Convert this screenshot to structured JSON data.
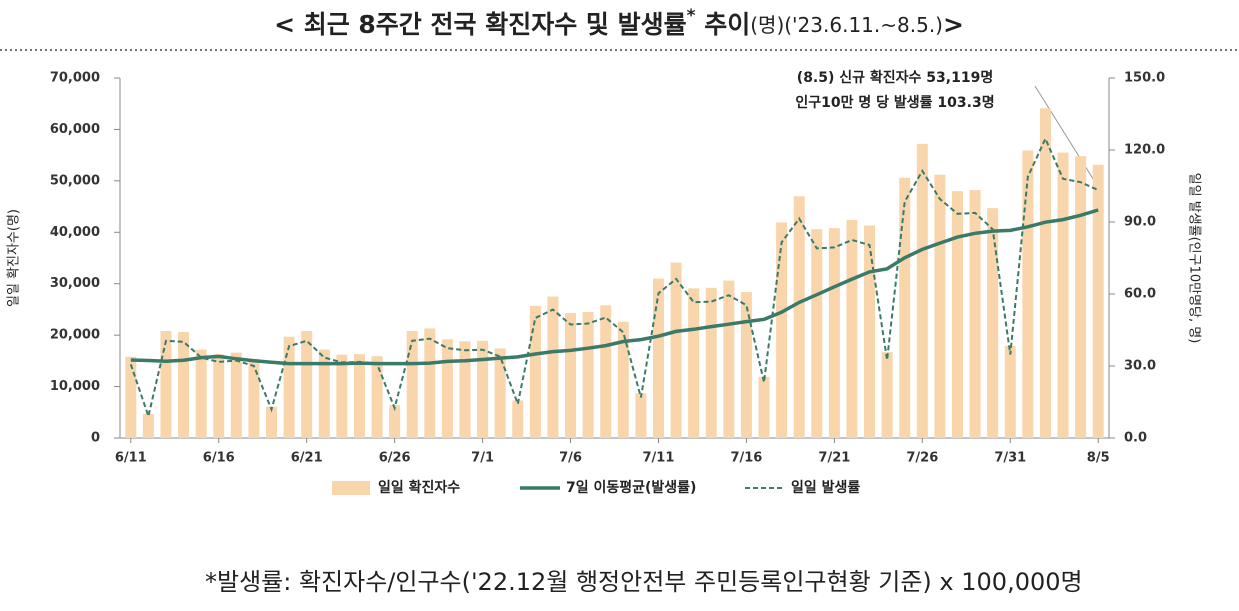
{
  "chart_data": {
    "type": "bar",
    "title": [
      "< 최근 8주간 전국 확진자수 및 발생률",
      "*",
      " 추이",
      "(명)('23.6.11.~8.5.)",
      ">"
    ],
    "categories": [
      "6/11",
      null,
      null,
      null,
      null,
      "6/16",
      null,
      null,
      null,
      null,
      "6/21",
      null,
      null,
      null,
      null,
      "6/26",
      null,
      null,
      null,
      null,
      "7/1",
      null,
      null,
      null,
      null,
      "7/6",
      null,
      null,
      null,
      null,
      "7/11",
      null,
      null,
      null,
      null,
      "7/16",
      null,
      null,
      null,
      null,
      "7/21",
      null,
      null,
      null,
      null,
      "7/26",
      null,
      null,
      null,
      null,
      "7/31",
      null,
      null,
      null,
      null,
      "8/5"
    ],
    "ylabel": "일일 확진자수(명)",
    "y2label": "일일 발생률(인구10만명당, 명)",
    "ylim": [
      0,
      70000
    ],
    "yticks": [
      0,
      {
        "value": 10000,
        "label": "10,000"
      },
      {
        "value": 20000,
        "label": "20,000"
      },
      {
        "value": 30000,
        "label": "30,000"
      },
      {
        "value": 40000,
        "label": "40,000"
      },
      {
        "value": 50000,
        "label": "50,000"
      },
      {
        "value": 60000,
        "label": "60,000"
      },
      {
        "value": 70000,
        "label": "70,000"
      }
    ],
    "y2lim": [
      0,
      150
    ],
    "y2ticks": [
      {
        "value": 0,
        "label": "0.0"
      },
      {
        "value": 30,
        "label": "30.0"
      },
      {
        "value": 60,
        "label": "60.0"
      },
      {
        "value": 90,
        "label": "90.0"
      },
      {
        "value": 120,
        "label": "120.0"
      },
      {
        "value": 150,
        "label": "150.0"
      }
    ],
    "series": [
      {
        "name": "일일 확진자수",
        "type": "bar",
        "color": "#f9d5ac",
        "values": [
          15800,
          4700,
          20800,
          20600,
          17200,
          16300,
          16600,
          15400,
          6100,
          19700,
          20800,
          17200,
          16200,
          16300,
          15900,
          6400,
          20800,
          21300,
          19200,
          18800,
          18900,
          17400,
          7300,
          25700,
          27500,
          24300,
          24500,
          25800,
          22600,
          8700,
          31000,
          34100,
          29100,
          29200,
          30600,
          28400,
          11900,
          41900,
          47000,
          40600,
          40800,
          42400,
          41300,
          16700,
          50600,
          57200,
          51200,
          48000,
          48200,
          44700,
          17900,
          55900,
          64100,
          55500,
          54800,
          53119
        ]
      },
      {
        "name": "7일 이동평균(발생률)",
        "type": "line",
        "axis": "y2",
        "color": "#3b7a68",
        "dashed": false,
        "values": [
          32.5,
          32.3,
          32.0,
          32.4,
          33.5,
          34.0,
          33.0,
          32.2,
          31.6,
          31.0,
          31.0,
          31.0,
          31.0,
          31.2,
          31.0,
          31.0,
          31.0,
          31.2,
          31.9,
          32.2,
          32.7,
          33.3,
          33.8,
          35.0,
          36.0,
          36.5,
          37.4,
          38.5,
          40.2,
          41.0,
          42.4,
          44.4,
          45.3,
          46.4,
          47.4,
          48.5,
          49.4,
          52.4,
          56.5,
          59.7,
          63.0,
          66.2,
          69.2,
          70.5,
          75.1,
          78.6,
          81.2,
          83.7,
          85.3,
          86.2,
          86.5,
          88.0,
          89.9,
          91.0,
          92.8,
          95.0
        ]
      },
      {
        "name": "일일 발생률",
        "type": "line",
        "axis": "y2",
        "color": "#3b7a68",
        "dashed": true,
        "values": [
          30.7,
          9.1,
          40.5,
          40.1,
          33.5,
          31.7,
          32.3,
          30.0,
          11.9,
          38.3,
          40.5,
          33.5,
          31.5,
          31.7,
          30.9,
          12.5,
          40.5,
          41.4,
          37.4,
          36.6,
          36.8,
          33.9,
          14.2,
          50.0,
          53.5,
          47.3,
          47.7,
          50.2,
          44.0,
          16.9,
          60.3,
          66.3,
          56.6,
          56.8,
          59.5,
          55.3,
          23.2,
          81.5,
          91.4,
          79.0,
          79.4,
          82.5,
          80.4,
          32.5,
          98.4,
          111.3,
          99.6,
          93.4,
          93.8,
          87.0,
          34.8,
          108.8,
          124.7,
          108.0,
          106.6,
          103.3
        ]
      }
    ],
    "annotations": [
      "(8.5) 신규 확진자수 53,119명",
      "인구10만 명 당 발생률 103.3명"
    ],
    "footnote": "*발생률: 확진자수/인구수('22.12월 행정안전부 주민등록인구현황 기준) x 100,000명"
  }
}
